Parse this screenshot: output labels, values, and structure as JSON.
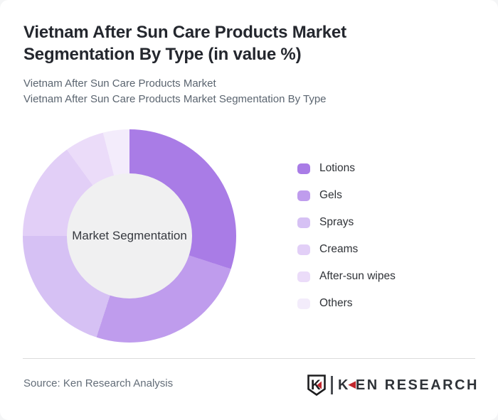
{
  "page": {
    "title": "Vietnam After Sun Care Products Market Segmentation By Type (in value %)",
    "subtitle_line1": "Vietnam After Sun Care Products Market",
    "subtitle_line2": "Vietnam After Sun Care Products Market Segmentation By Type"
  },
  "chart_data": {
    "type": "pie",
    "variant": "donut",
    "title": "Vietnam After Sun Care Products Market Segmentation By Type (in value %)",
    "unit": "value %",
    "center_label": "Market Segmentation",
    "legend_position": "right",
    "start_angle_deg": 0,
    "direction": "clockwise",
    "hole_color": "#f0f0f1",
    "segments": [
      {
        "label": "Lotions",
        "value": 30,
        "color": "#a97ce6"
      },
      {
        "label": "Gels",
        "value": 25,
        "color": "#bf9ced"
      },
      {
        "label": "Sprays",
        "value": 20,
        "color": "#d6c1f4"
      },
      {
        "label": "Creams",
        "value": 15,
        "color": "#e2cff7"
      },
      {
        "label": "After-sun wipes",
        "value": 6,
        "color": "#ebdcf9"
      },
      {
        "label": "Others",
        "value": 4,
        "color": "#f3ecfb"
      }
    ]
  },
  "footer": {
    "source": "Source: Ken Research Analysis",
    "logo": {
      "shield_letter": "K",
      "wordmark_k": "K",
      "triangle_char": "◀",
      "wordmark_rest": "EN RESEARCH",
      "accent_color": "#c0272d"
    }
  }
}
